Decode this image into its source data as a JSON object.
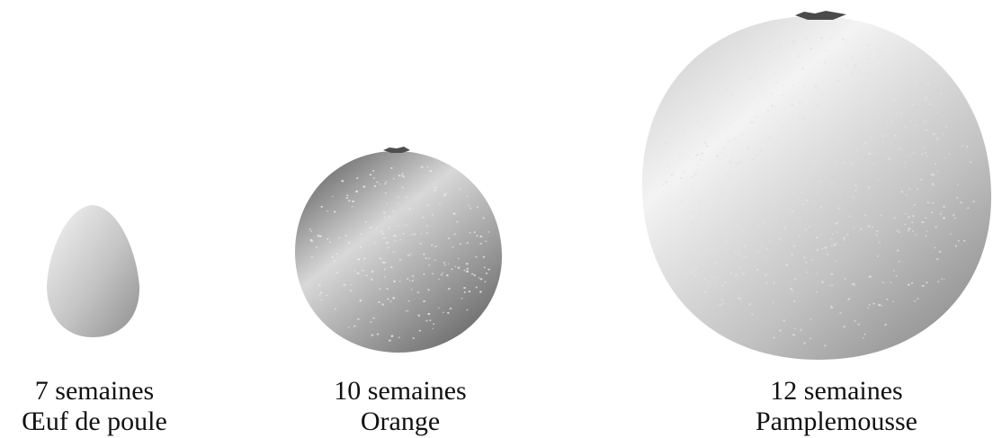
{
  "items": [
    {
      "weeks": "7 semaines",
      "fruit": "Œuf de poule"
    },
    {
      "weeks": "10 semaines",
      "fruit": "Orange"
    },
    {
      "weeks": "12 semaines",
      "fruit": "Pamplemousse"
    }
  ],
  "colors": {
    "light": "#f4f4f4",
    "mid": "#bdbdbd",
    "dark": "#6f6f6f",
    "stem": "#555555",
    "dots": "#e6e6e6"
  }
}
